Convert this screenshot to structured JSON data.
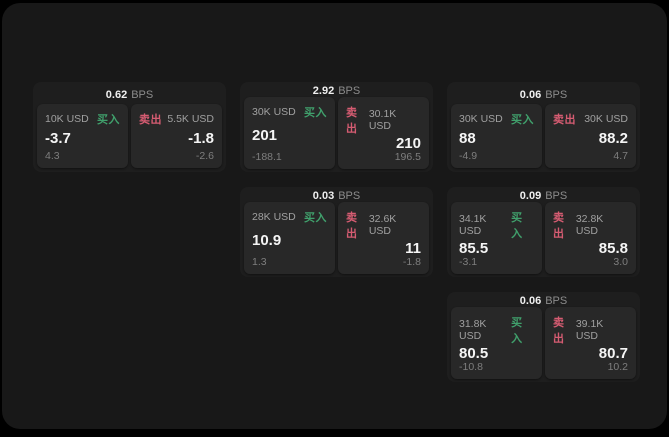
{
  "app": {
    "background": "#000000",
    "panel_background": "#181818"
  },
  "colors": {
    "buy_green": "#40a06c",
    "sell_red": "#d65c72",
    "card_background": "#1e1e1e",
    "tile_background": "#282828",
    "value_white": "#f5f5f5",
    "amount_gray": "#a0a0a0",
    "sub_gray": "#7e7e7e"
  },
  "labels": {
    "bps_unit": "BPS",
    "buy": "买入",
    "sell": "卖出"
  },
  "cards": [
    {
      "bps": "0.62",
      "buy": {
        "amount": "10K USD",
        "value": "-3.7",
        "sub": "4.3"
      },
      "sell": {
        "amount": "5.5K USD",
        "value": "-1.8",
        "sub": "-2.6"
      }
    },
    {
      "bps": "2.92",
      "buy": {
        "amount": "30K USD",
        "value": "201",
        "sub": "-188.1"
      },
      "sell": {
        "amount": "30.1K USD",
        "value": "210",
        "sub": "196.5"
      }
    },
    {
      "bps": "0.06",
      "buy": {
        "amount": "30K USD",
        "value": "88",
        "sub": "-4.9"
      },
      "sell": {
        "amount": "30K USD",
        "value": "88.2",
        "sub": "4.7"
      }
    },
    {
      "bps": "0.03",
      "buy": {
        "amount": "28K USD",
        "value": "10.9",
        "sub": "1.3"
      },
      "sell": {
        "amount": "32.6K USD",
        "value": "11",
        "sub": "-1.8"
      }
    },
    {
      "bps": "0.09",
      "buy": {
        "amount": "34.1K USD",
        "value": "85.5",
        "sub": "-3.1"
      },
      "sell": {
        "amount": "32.8K USD",
        "value": "85.8",
        "sub": "3.0"
      }
    },
    {
      "bps": "0.06",
      "buy": {
        "amount": "31.8K USD",
        "value": "80.5",
        "sub": "-10.8"
      },
      "sell": {
        "amount": "39.1K USD",
        "value": "80.7",
        "sub": "10.2"
      }
    }
  ]
}
